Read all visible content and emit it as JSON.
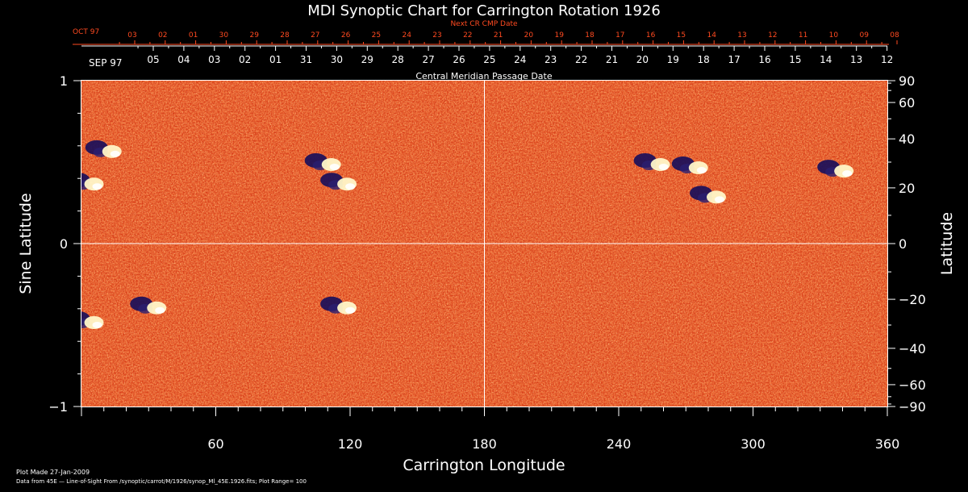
{
  "chart_data": {
    "type": "heatmap",
    "title": "MDI Synoptic Chart for Carrington Rotation 1926",
    "xlabel": "Carrington Longitude",
    "ylabel_left": "Sine Latitude",
    "ylabel_right": "Latitude",
    "xlim": [
      0,
      360
    ],
    "ylim": [
      -1,
      1
    ],
    "x_ticks": [
      60,
      120,
      180,
      240,
      300,
      360
    ],
    "x_tick_labels": [
      "60",
      "120",
      "180",
      "240",
      "300",
      "360"
    ],
    "y_left_ticks": [
      1,
      0,
      -1
    ],
    "y_left_tick_labels": [
      "1",
      "0",
      "−1"
    ],
    "y_right_ticks": [
      90,
      60,
      40,
      20,
      0,
      -20,
      -40,
      -60,
      -90
    ],
    "y_right_tick_labels": [
      "90",
      "60",
      "40",
      "20",
      "0",
      "−20",
      "−40",
      "−60",
      "−90"
    ],
    "top_axis_title": "Central Meridian Passage Date",
    "top_axis_start_label": "SEP 97",
    "top_axis_dates": [
      "05",
      "04",
      "03",
      "02",
      "01",
      "31",
      "30",
      "29",
      "28",
      "27",
      "26",
      "25",
      "24",
      "23",
      "22",
      "21",
      "20",
      "19",
      "18",
      "17",
      "16",
      "15",
      "14",
      "13",
      "12"
    ],
    "next_cr_title": "Next CR CMP Date",
    "next_cr_start_label": "OCT 97",
    "next_cr_dates": [
      "03",
      "02",
      "01",
      "30",
      "29",
      "28",
      "27",
      "26",
      "25",
      "24",
      "23",
      "22",
      "21",
      "20",
      "19",
      "18",
      "17",
      "16",
      "15",
      "14",
      "13",
      "12",
      "11",
      "10",
      "09",
      "08"
    ],
    "gridlines": {
      "x": [
        180
      ],
      "y": [
        0
      ]
    },
    "active_regions": [
      {
        "lon": 10,
        "sinlat": 0.58
      },
      {
        "lon": 2,
        "sinlat": 0.38
      },
      {
        "lon": 115,
        "sinlat": 0.38
      },
      {
        "lon": 108,
        "sinlat": 0.5
      },
      {
        "lon": 272,
        "sinlat": 0.48
      },
      {
        "lon": 280,
        "sinlat": 0.3
      },
      {
        "lon": 255,
        "sinlat": 0.5
      },
      {
        "lon": 337,
        "sinlat": 0.46
      },
      {
        "lon": 30,
        "sinlat": -0.38
      },
      {
        "lon": 115,
        "sinlat": -0.38
      },
      {
        "lon": 2,
        "sinlat": -0.47
      }
    ],
    "colors": {
      "background": "#000000",
      "field": "#e8501a",
      "positive": "#fff7c8",
      "negative": "#1a0f5a",
      "axis": "#ffffff",
      "secondary": "#ff4a20"
    }
  },
  "footer": {
    "plot_made": "Plot Made 27-Jan-2009",
    "data_source": "Data from 45E — Line-of-Sight From /synoptic/carrot/M/1926/synop_Ml_45E.1926.fits; Plot Range= 100"
  }
}
